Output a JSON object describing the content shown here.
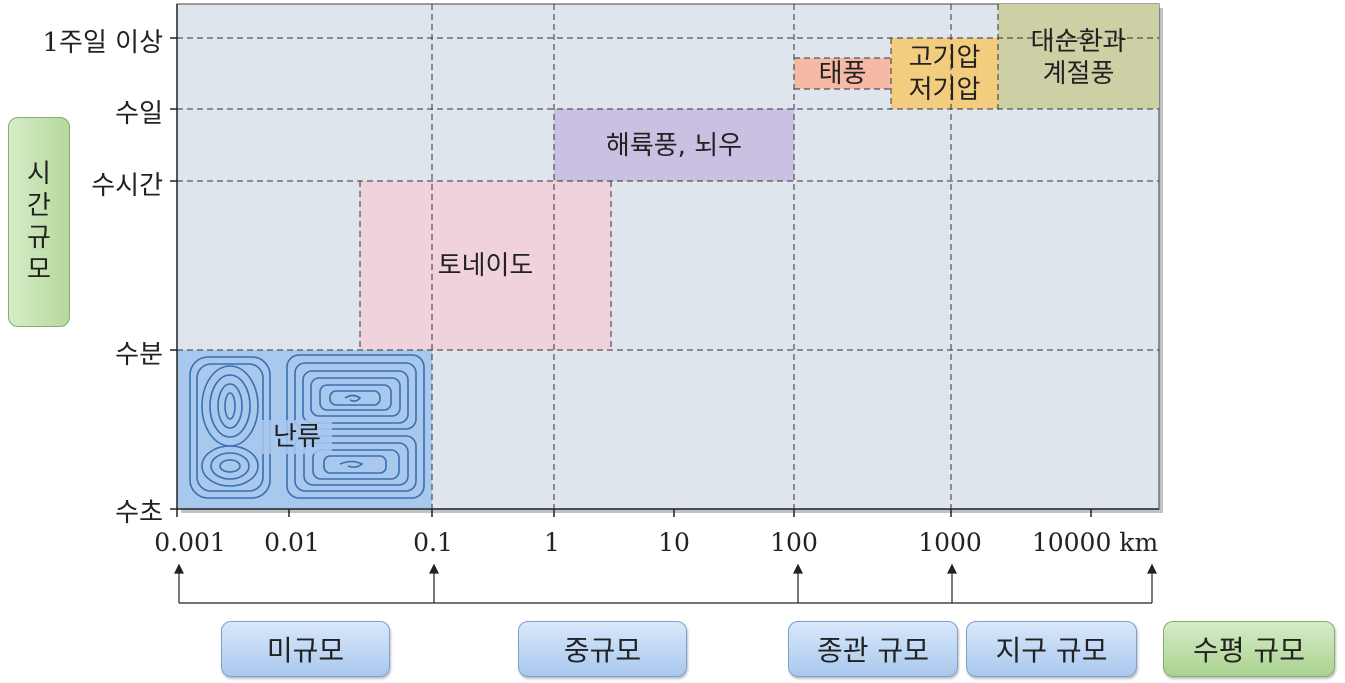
{
  "axes": {
    "y_title_chars": [
      "시",
      "간",
      "규",
      "모"
    ],
    "y_ticks": [
      "1주일  이상",
      "수일",
      "수시간",
      "수분",
      "수초"
    ],
    "x_ticks": [
      "0.001",
      "0.01",
      "0.1",
      "1",
      "10",
      "100",
      "1000",
      "10000 km"
    ]
  },
  "phenomena": [
    {
      "label": "난류",
      "color": "#a9c8ee"
    },
    {
      "label": "토네이도",
      "color": "#efd2dc"
    },
    {
      "label": "해륙풍,  뇌우",
      "color": "#c9c0e2"
    },
    {
      "label": "태풍",
      "color": "#f6b9a6"
    },
    {
      "label": "고기압\n저기압",
      "color": "#f3cd7f"
    },
    {
      "label": "대순환과\n계절풍",
      "color": "#cdcfa5"
    }
  ],
  "scale_categories": [
    "미규모",
    "중규모",
    "종관  규모",
    "지구  규모"
  ],
  "x_title": "수평  규모",
  "colors": {
    "plot_bg": "#dfe5ed",
    "grid": "#333333"
  }
}
